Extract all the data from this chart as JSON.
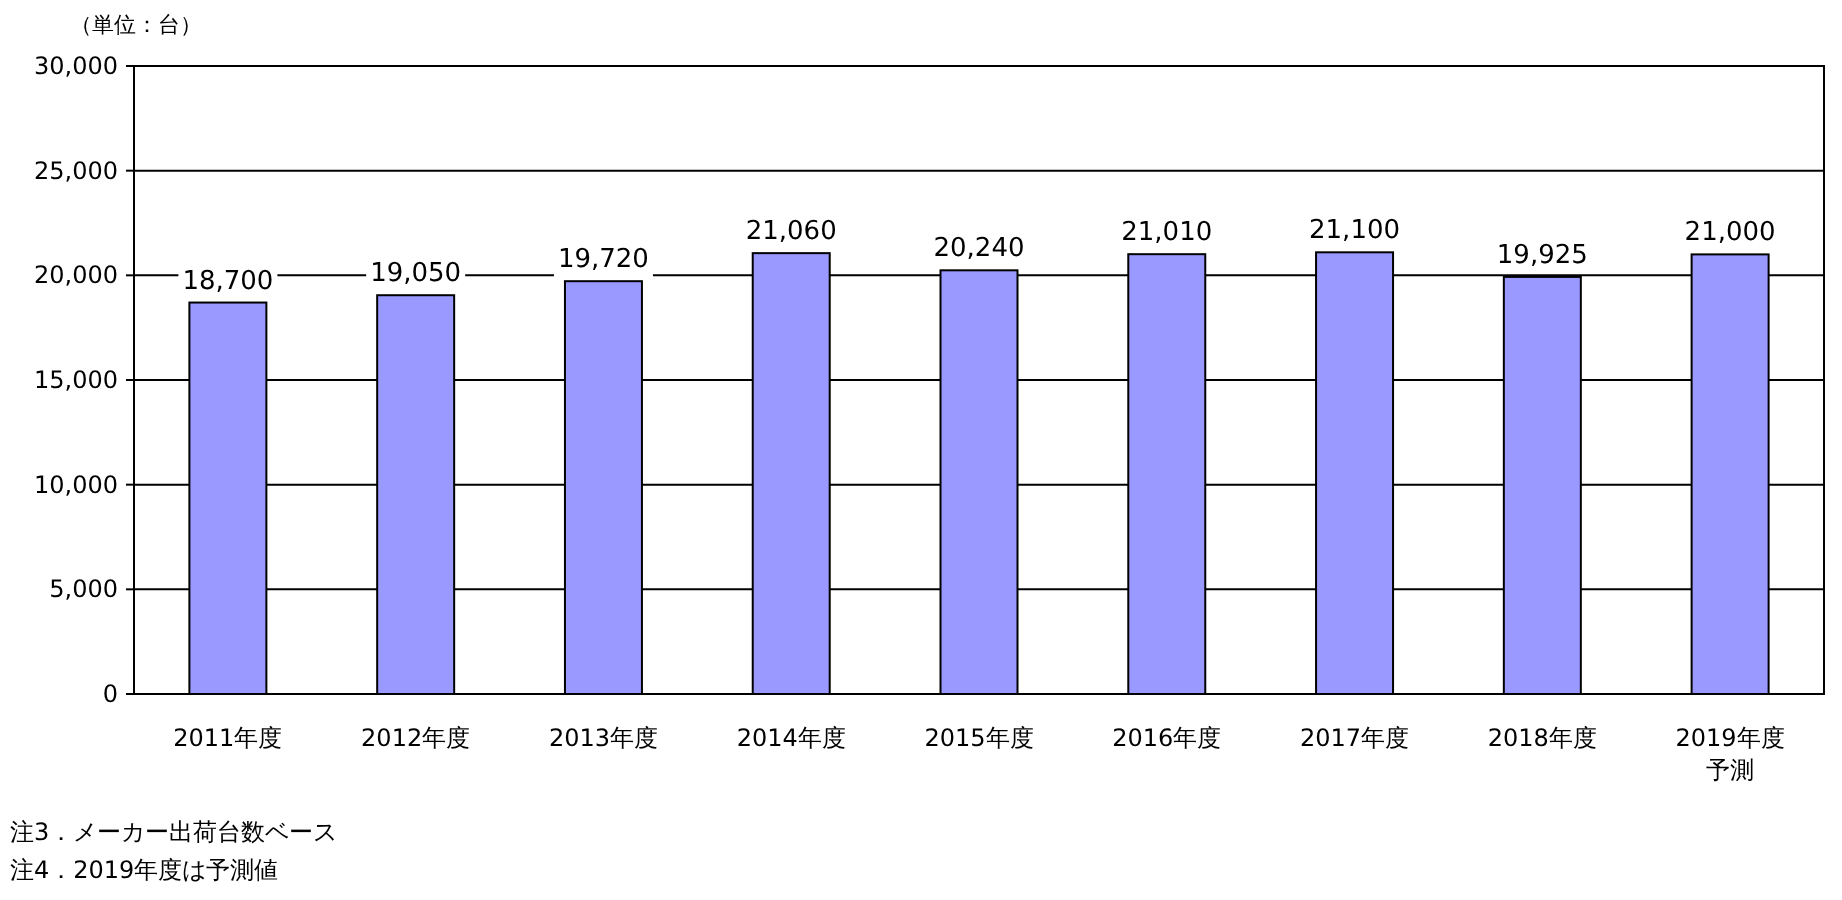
{
  "chart_data": {
    "type": "bar",
    "ylabel": "（単位：台）",
    "categories": [
      "2011年度",
      "2012年度",
      "2013年度",
      "2014年度",
      "2015年度",
      "2016年度",
      "2017年度",
      "2018年度",
      "2019年度予測"
    ],
    "values": [
      18700,
      19050,
      19720,
      21060,
      20240,
      21010,
      21100,
      19925,
      21000
    ],
    "value_labels": [
      "18,700",
      "19,050",
      "19,720",
      "21,060",
      "20,240",
      "21,010",
      "21,100",
      "19,925",
      "21,000"
    ],
    "color": "#9999ff",
    "ylim": [
      0,
      30000
    ],
    "yticks": [
      {
        "value": 0,
        "label": "0"
      },
      {
        "value": 5000,
        "label": "5,000"
      },
      {
        "value": 10000,
        "label": "10,000"
      },
      {
        "value": 15000,
        "label": "15,000"
      },
      {
        "value": 20000,
        "label": "20,000"
      },
      {
        "value": 25000,
        "label": "25,000"
      },
      {
        "value": 30000,
        "label": "30,000"
      }
    ],
    "grid": "y",
    "annotations": [
      "注3．メーカー出荷台数ベース",
      "注4．2019年度は予測値"
    ]
  }
}
